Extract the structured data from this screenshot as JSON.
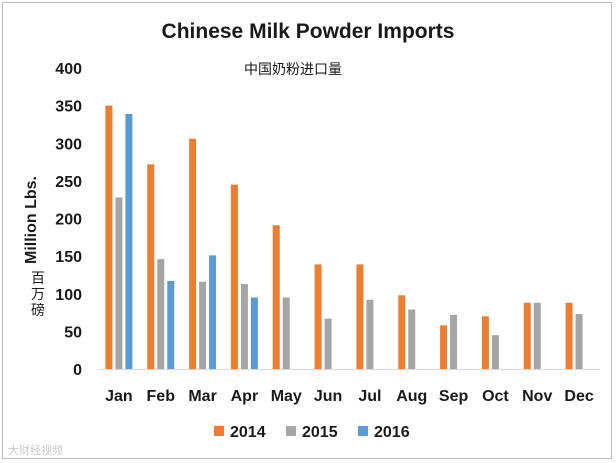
{
  "chart_data": {
    "type": "bar",
    "title": "Chinese Milk Powder Imports",
    "subtitle": "中国奶粉进口量",
    "xlabel": "",
    "ylabel": "Million Lbs.",
    "ylabel_cn": "百万磅",
    "ylim": [
      0,
      400
    ],
    "yticks": [
      0,
      50,
      100,
      150,
      200,
      250,
      300,
      350,
      400
    ],
    "categories": [
      "Jan",
      "Feb",
      "Mar",
      "Apr",
      "May",
      "Jun",
      "Jul",
      "Aug",
      "Sep",
      "Oct",
      "Nov",
      "Dec"
    ],
    "series": [
      {
        "name": "2014",
        "color": "#ed7d31",
        "values": [
          350,
          272,
          306,
          245,
          191,
          139,
          139,
          98,
          58,
          70,
          88,
          88
        ]
      },
      {
        "name": "2015",
        "color": "#a5a5a5",
        "values": [
          228,
          146,
          116,
          113,
          95,
          67,
          92,
          79,
          72,
          45,
          88,
          73
        ]
      },
      {
        "name": "2016",
        "color": "#5b9bd5",
        "values": [
          339,
          117,
          151,
          95,
          null,
          null,
          null,
          null,
          null,
          null,
          null,
          null
        ]
      }
    ],
    "legend": "bottom",
    "grid": false
  },
  "watermark": "大财经视频"
}
